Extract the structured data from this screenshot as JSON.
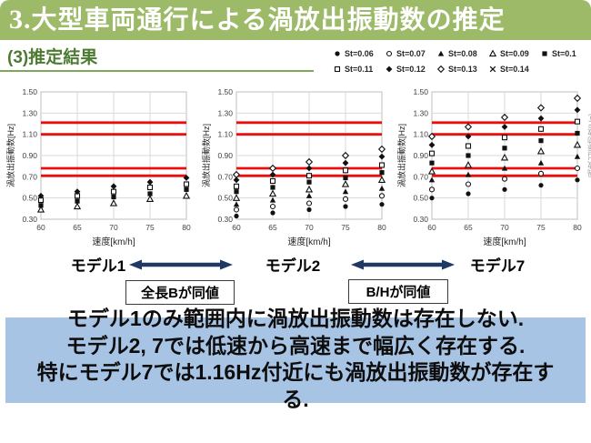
{
  "slide": {
    "title_prefix": "3.",
    "title": "大型車両通行による渦放出振動数の推定",
    "subtitle": "(3)推定結果"
  },
  "colors": {
    "header_green": "#9cba68",
    "subtitle_green": "#4e7b32",
    "rule_green": "#7fa65a",
    "accent_navy": "#1f3864",
    "highlight_blue": "#a8c4e5",
    "red_line": "#e80f0f",
    "marker_black": "#111111",
    "axis_text": "#404040",
    "grid_gray": "#d9d9d9",
    "border_gray": "#bfbfbf"
  },
  "legend": {
    "items": [
      {
        "marker": "circle-filled",
        "label": "St=0.06"
      },
      {
        "marker": "circle-open",
        "label": "St=0.07"
      },
      {
        "marker": "triangle-filled",
        "label": "St=0.08"
      },
      {
        "marker": "triangle-open",
        "label": "St=0.09"
      },
      {
        "marker": "square-filled",
        "label": "St=0.1"
      },
      {
        "marker": "square-open",
        "label": "St=0.11"
      },
      {
        "marker": "diamond-filled",
        "label": "St=0.12"
      },
      {
        "marker": "diamond-open",
        "label": "St=0.13"
      },
      {
        "marker": "x",
        "label": "St=0.14"
      }
    ]
  },
  "charts": {
    "xlabel": "速度[km/h]",
    "ylabel": "渦放出振動数[Hz]",
    "x_ticks": [
      60,
      65,
      70,
      75,
      80
    ],
    "y_ticks": [
      "0.30",
      "0.50",
      "0.70",
      "0.90",
      "1.10",
      "1.30",
      "1.50"
    ],
    "xlim": [
      60,
      80
    ],
    "ylim": [
      0.3,
      1.5
    ],
    "grid": true,
    "red_lines_hz": [
      0.71,
      0.78,
      1.1,
      1.21
    ]
  },
  "chart_data": [
    {
      "type": "scatter",
      "title": "モデル1",
      "x": [
        60,
        65,
        70,
        75,
        80
      ],
      "series": [
        {
          "name": "St=0.09",
          "marker": "triangle-open",
          "values": [
            0.39,
            0.42,
            0.45,
            0.49,
            0.52
          ]
        },
        {
          "name": "St=0.1",
          "marker": "square-filled",
          "values": [
            0.43,
            0.47,
            0.51,
            0.54,
            0.58
          ]
        },
        {
          "name": "St=0.11",
          "marker": "square-open",
          "values": [
            0.48,
            0.52,
            0.56,
            0.6,
            0.63
          ]
        },
        {
          "name": "St=0.12",
          "marker": "diamond-filled",
          "values": [
            0.52,
            0.56,
            0.61,
            0.65,
            0.69
          ]
        }
      ]
    },
    {
      "type": "scatter",
      "title": "モデル2",
      "x": [
        60,
        65,
        70,
        75,
        80
      ],
      "series": [
        {
          "name": "St=0.06",
          "marker": "circle-filled",
          "values": [
            0.33,
            0.36,
            0.39,
            0.42,
            0.44
          ]
        },
        {
          "name": "St=0.07",
          "marker": "circle-open",
          "values": [
            0.39,
            0.42,
            0.45,
            0.49,
            0.52
          ]
        },
        {
          "name": "St=0.08",
          "marker": "triangle-filled",
          "values": [
            0.44,
            0.48,
            0.52,
            0.56,
            0.59
          ]
        },
        {
          "name": "St=0.09",
          "marker": "triangle-open",
          "values": [
            0.5,
            0.54,
            0.58,
            0.63,
            0.67
          ]
        },
        {
          "name": "St=0.1",
          "marker": "square-filled",
          "values": [
            0.56,
            0.6,
            0.65,
            0.69,
            0.74
          ]
        },
        {
          "name": "St=0.11",
          "marker": "square-open",
          "values": [
            0.61,
            0.66,
            0.71,
            0.76,
            0.81
          ]
        },
        {
          "name": "St=0.12",
          "marker": "diamond-filled",
          "values": [
            0.67,
            0.72,
            0.78,
            0.83,
            0.89
          ]
        },
        {
          "name": "St=0.13",
          "marker": "diamond-open",
          "values": [
            0.72,
            0.78,
            0.84,
            0.9,
            0.96
          ]
        }
      ]
    },
    {
      "type": "scatter",
      "title": "モデル7",
      "x": [
        60,
        65,
        70,
        75,
        80
      ],
      "series": [
        {
          "name": "St=0.06",
          "marker": "circle-filled",
          "values": [
            0.5,
            0.54,
            0.58,
            0.62,
            0.67
          ]
        },
        {
          "name": "St=0.07",
          "marker": "circle-open",
          "values": [
            0.58,
            0.63,
            0.68,
            0.73,
            0.78
          ]
        },
        {
          "name": "St=0.08",
          "marker": "triangle-filled",
          "values": [
            0.67,
            0.72,
            0.78,
            0.83,
            0.89
          ]
        },
        {
          "name": "St=0.09",
          "marker": "triangle-open",
          "values": [
            0.75,
            0.81,
            0.88,
            0.94,
            1.0
          ]
        },
        {
          "name": "St=0.1",
          "marker": "square-filled",
          "values": [
            0.83,
            0.9,
            0.97,
            1.04,
            1.11
          ]
        },
        {
          "name": "St=0.11",
          "marker": "square-open",
          "values": [
            0.92,
            0.99,
            1.07,
            1.15,
            1.22
          ]
        },
        {
          "name": "St=0.12",
          "marker": "diamond-filled",
          "values": [
            1.0,
            1.08,
            1.17,
            1.25,
            1.33
          ]
        },
        {
          "name": "St=0.13",
          "marker": "diamond-open",
          "values": [
            1.08,
            1.17,
            1.26,
            1.35,
            1.44
          ]
        }
      ]
    }
  ],
  "models": {
    "labels": [
      "モデル1",
      "モデル2",
      "モデル7"
    ]
  },
  "annotations": {
    "boxes": [
      "全長Bが同値",
      "B/Hが同値"
    ]
  },
  "conclusion": {
    "lines": [
      "モデル1のみ範囲内に渦放出振動数は存在しない.",
      "モデル2, 7では低速から高速まで幅広く存在する.",
      "特にモデル7では1.16Hz付近にも渦放出振動数が存在す",
      "る."
    ]
  }
}
